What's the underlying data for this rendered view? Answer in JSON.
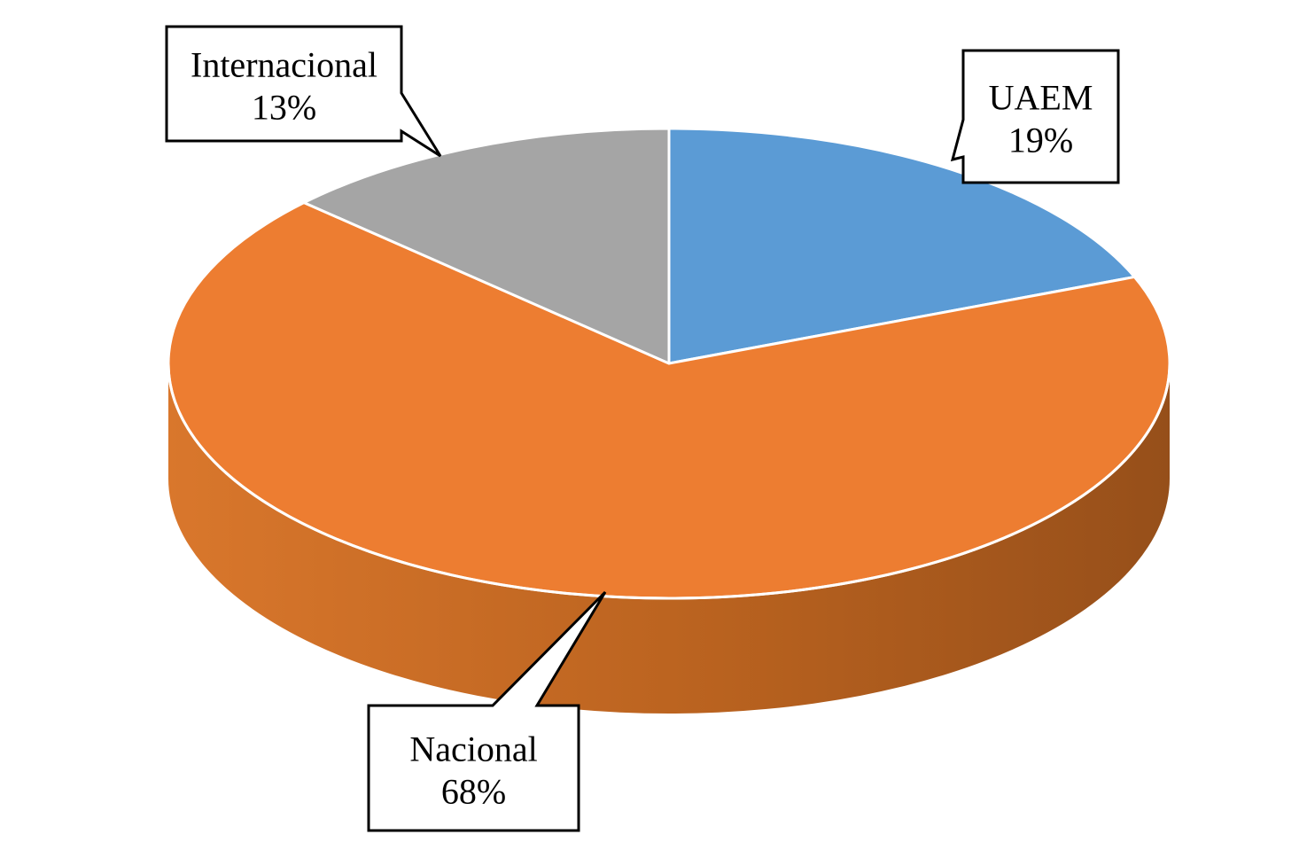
{
  "chart_data": {
    "type": "pie",
    "style": "3d-pie",
    "title": "",
    "legend": "none",
    "slices": [
      {
        "label": "UAEM",
        "value": 19,
        "value_label": "19%",
        "color": "#5B9BD5"
      },
      {
        "label": "Nacional",
        "value": 68,
        "value_label": "68%",
        "color": "#ED7D31"
      },
      {
        "label": "Internacional",
        "value": 13,
        "value_label": "13%",
        "color": "#A5A5A5"
      }
    ]
  }
}
